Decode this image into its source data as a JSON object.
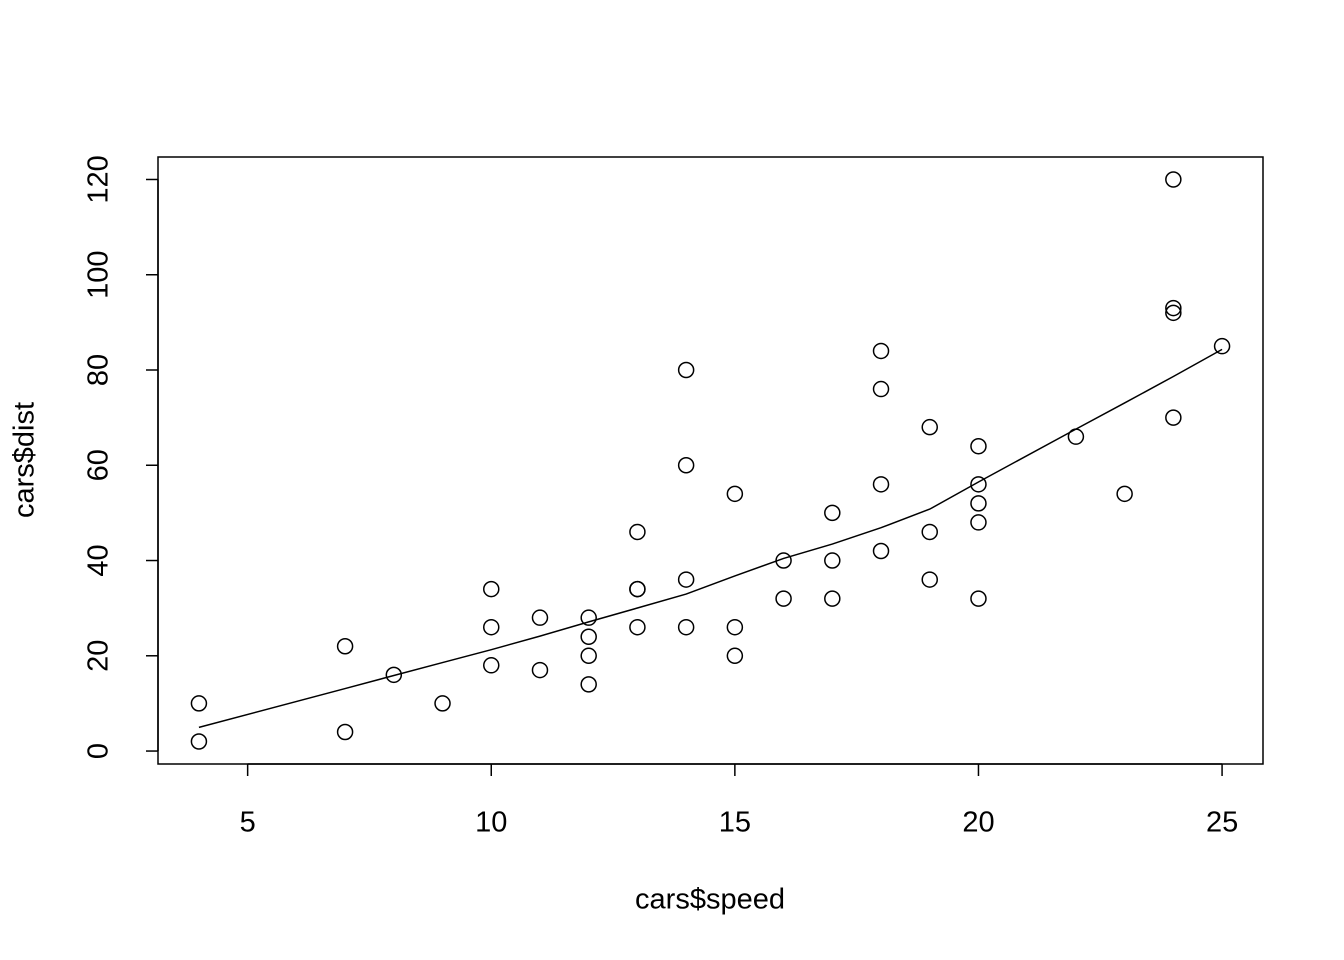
{
  "chart_data": {
    "type": "scatter",
    "x_label": "cars$speed",
    "y_label": "cars$dist",
    "xlim": [
      3.16,
      25.84
    ],
    "ylim": [
      -2.72,
      124.72
    ],
    "xticks": [
      5,
      10,
      15,
      20,
      25
    ],
    "yticks": [
      0,
      20,
      40,
      60,
      80,
      100,
      120
    ],
    "series": [
      {
        "type": "scatter",
        "color": "#000000",
        "x": [
          4,
          4,
          7,
          7,
          8,
          9,
          10,
          10,
          10,
          11,
          11,
          12,
          12,
          12,
          12,
          13,
          13,
          13,
          13,
          14,
          14,
          14,
          14,
          15,
          15,
          15,
          16,
          16,
          17,
          17,
          17,
          18,
          18,
          18,
          18,
          19,
          19,
          19,
          20,
          20,
          20,
          20,
          20,
          22,
          23,
          24,
          24,
          24,
          24,
          25
        ],
        "values": [
          2,
          10,
          4,
          22,
          16,
          10,
          18,
          26,
          34,
          17,
          28,
          14,
          20,
          24,
          28,
          26,
          34,
          34,
          46,
          26,
          36,
          60,
          80,
          20,
          26,
          54,
          32,
          40,
          32,
          40,
          50,
          42,
          56,
          76,
          84,
          36,
          46,
          68,
          32,
          48,
          52,
          56,
          64,
          66,
          54,
          70,
          92,
          93,
          120,
          85
        ]
      },
      {
        "type": "line",
        "color": "#000000",
        "x": [
          4,
          7,
          8,
          9,
          10,
          11,
          12,
          13,
          14,
          15,
          16,
          17,
          18,
          19,
          20,
          22,
          23,
          24,
          25
        ],
        "values": [
          4.97,
          13.12,
          15.86,
          18.58,
          21.28,
          24.13,
          27.12,
          30.03,
          32.96,
          36.76,
          40.44,
          43.46,
          46.89,
          50.79,
          56.49,
          67.59,
          73.08,
          78.64,
          84.33
        ]
      }
    ]
  }
}
